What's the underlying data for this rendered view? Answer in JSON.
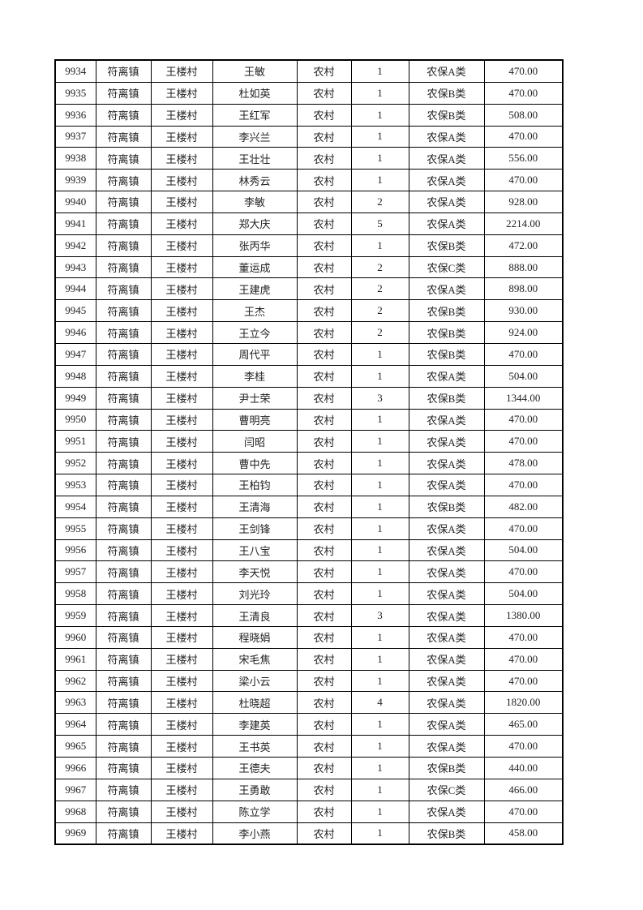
{
  "table": {
    "rows": [
      [
        "9934",
        "符离镇",
        "王楼村",
        "王敏",
        "农村",
        "1",
        "农保A类",
        "470.00"
      ],
      [
        "9935",
        "符离镇",
        "王楼村",
        "杜如英",
        "农村",
        "1",
        "农保B类",
        "470.00"
      ],
      [
        "9936",
        "符离镇",
        "王楼村",
        "王红军",
        "农村",
        "1",
        "农保B类",
        "508.00"
      ],
      [
        "9937",
        "符离镇",
        "王楼村",
        "李兴兰",
        "农村",
        "1",
        "农保A类",
        "470.00"
      ],
      [
        "9938",
        "符离镇",
        "王楼村",
        "王壮壮",
        "农村",
        "1",
        "农保A类",
        "556.00"
      ],
      [
        "9939",
        "符离镇",
        "王楼村",
        "林秀云",
        "农村",
        "1",
        "农保A类",
        "470.00"
      ],
      [
        "9940",
        "符离镇",
        "王楼村",
        "李敏",
        "农村",
        "2",
        "农保A类",
        "928.00"
      ],
      [
        "9941",
        "符离镇",
        "王楼村",
        "郑大庆",
        "农村",
        "5",
        "农保A类",
        "2214.00"
      ],
      [
        "9942",
        "符离镇",
        "王楼村",
        "张丙华",
        "农村",
        "1",
        "农保B类",
        "472.00"
      ],
      [
        "9943",
        "符离镇",
        "王楼村",
        "董运成",
        "农村",
        "2",
        "农保C类",
        "888.00"
      ],
      [
        "9944",
        "符离镇",
        "王楼村",
        "王建虎",
        "农村",
        "2",
        "农保A类",
        "898.00"
      ],
      [
        "9945",
        "符离镇",
        "王楼村",
        "王杰",
        "农村",
        "2",
        "农保B类",
        "930.00"
      ],
      [
        "9946",
        "符离镇",
        "王楼村",
        "王立今",
        "农村",
        "2",
        "农保B类",
        "924.00"
      ],
      [
        "9947",
        "符离镇",
        "王楼村",
        "周代平",
        "农村",
        "1",
        "农保B类",
        "470.00"
      ],
      [
        "9948",
        "符离镇",
        "王楼村",
        "李桂",
        "农村",
        "1",
        "农保A类",
        "504.00"
      ],
      [
        "9949",
        "符离镇",
        "王楼村",
        "尹士荣",
        "农村",
        "3",
        "农保B类",
        "1344.00"
      ],
      [
        "9950",
        "符离镇",
        "王楼村",
        "曹明亮",
        "农村",
        "1",
        "农保A类",
        "470.00"
      ],
      [
        "9951",
        "符离镇",
        "王楼村",
        "闫昭",
        "农村",
        "1",
        "农保A类",
        "470.00"
      ],
      [
        "9952",
        "符离镇",
        "王楼村",
        "曹中先",
        "农村",
        "1",
        "农保A类",
        "478.00"
      ],
      [
        "9953",
        "符离镇",
        "王楼村",
        "王柏钧",
        "农村",
        "1",
        "农保A类",
        "470.00"
      ],
      [
        "9954",
        "符离镇",
        "王楼村",
        "王清海",
        "农村",
        "1",
        "农保B类",
        "482.00"
      ],
      [
        "9955",
        "符离镇",
        "王楼村",
        "王剑锋",
        "农村",
        "1",
        "农保A类",
        "470.00"
      ],
      [
        "9956",
        "符离镇",
        "王楼村",
        "王八宝",
        "农村",
        "1",
        "农保A类",
        "504.00"
      ],
      [
        "9957",
        "符离镇",
        "王楼村",
        "李天悦",
        "农村",
        "1",
        "农保A类",
        "470.00"
      ],
      [
        "9958",
        "符离镇",
        "王楼村",
        "刘光玲",
        "农村",
        "1",
        "农保A类",
        "504.00"
      ],
      [
        "9959",
        "符离镇",
        "王楼村",
        "王清良",
        "农村",
        "3",
        "农保A类",
        "1380.00"
      ],
      [
        "9960",
        "符离镇",
        "王楼村",
        "程晓娟",
        "农村",
        "1",
        "农保A类",
        "470.00"
      ],
      [
        "9961",
        "符离镇",
        "王楼村",
        "宋毛焦",
        "农村",
        "1",
        "农保A类",
        "470.00"
      ],
      [
        "9962",
        "符离镇",
        "王楼村",
        "梁小云",
        "农村",
        "1",
        "农保A类",
        "470.00"
      ],
      [
        "9963",
        "符离镇",
        "王楼村",
        "杜晓超",
        "农村",
        "4",
        "农保A类",
        "1820.00"
      ],
      [
        "9964",
        "符离镇",
        "王楼村",
        "李建英",
        "农村",
        "1",
        "农保A类",
        "465.00"
      ],
      [
        "9965",
        "符离镇",
        "王楼村",
        "王书英",
        "农村",
        "1",
        "农保A类",
        "470.00"
      ],
      [
        "9966",
        "符离镇",
        "王楼村",
        "王德夫",
        "农村",
        "1",
        "农保B类",
        "440.00"
      ],
      [
        "9967",
        "符离镇",
        "王楼村",
        "王勇敢",
        "农村",
        "1",
        "农保C类",
        "466.00"
      ],
      [
        "9968",
        "符离镇",
        "王楼村",
        "陈立学",
        "农村",
        "1",
        "农保A类",
        "470.00"
      ],
      [
        "9969",
        "符离镇",
        "王楼村",
        "李小燕",
        "农村",
        "1",
        "农保B类",
        "458.00"
      ]
    ]
  }
}
